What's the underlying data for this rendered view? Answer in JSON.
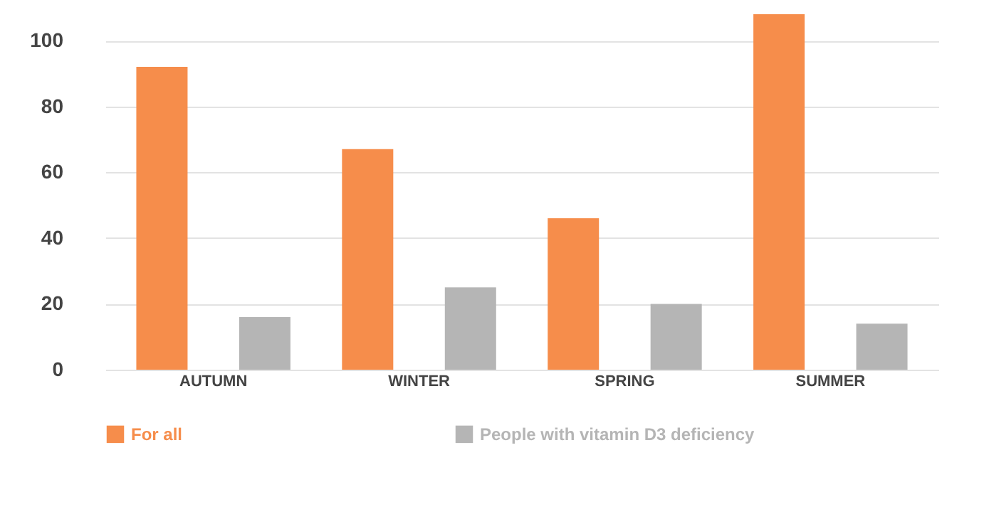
{
  "chart_data": {
    "type": "bar",
    "categories": [
      "AUTUMN",
      "WINTER",
      "SPRING",
      "SUMMER"
    ],
    "series": [
      {
        "name": "For all",
        "color": "#f68d4b",
        "values": [
          92,
          67,
          46,
          108
        ]
      },
      {
        "name": "People with vitamin D3 deficiency",
        "color": "#b5b5b5",
        "values": [
          16,
          25,
          20,
          14
        ]
      }
    ],
    "ylim": [
      0,
      108
    ],
    "yticks": [
      0,
      20,
      40,
      60,
      80,
      100
    ],
    "grid": "y",
    "legend": "bottom"
  }
}
